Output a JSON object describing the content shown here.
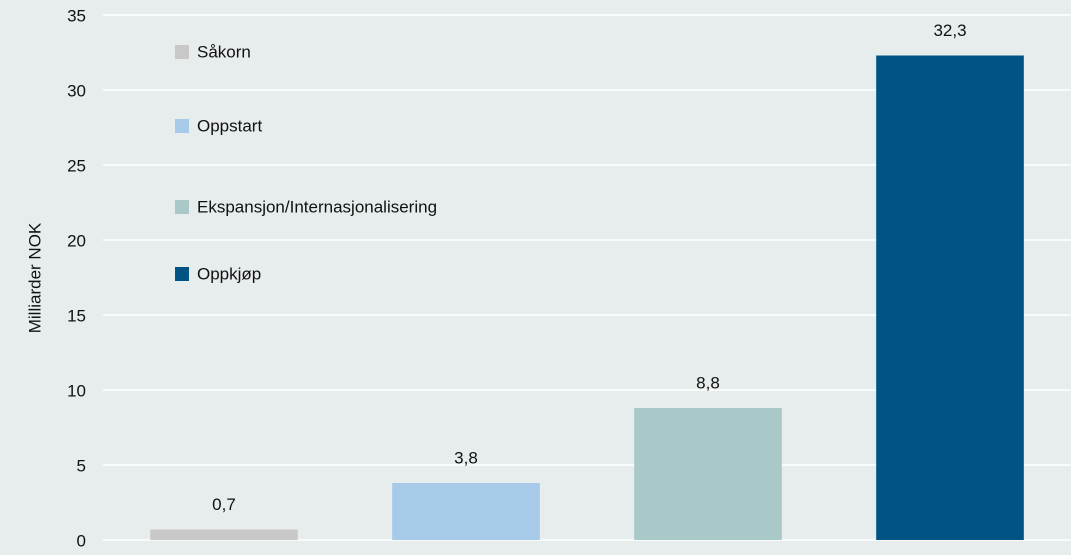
{
  "chart_data": {
    "type": "bar",
    "y_label": "Milliarder NOK",
    "categories": [
      "Såkorn",
      "Oppstart",
      "Ekspansjon/Internasjonalisering",
      "Oppkjøp"
    ],
    "values": [
      0.7,
      3.8,
      8.8,
      32.3
    ],
    "value_labels": [
      "0,7",
      "3,8",
      "8,8",
      "32,3"
    ],
    "colors": [
      "#c8c8c8",
      "#a7cae9",
      "#a9c8c8",
      "#005382"
    ],
    "ylim": [
      0,
      35
    ],
    "yticks": [
      0,
      5,
      10,
      15,
      20,
      25,
      30,
      35
    ],
    "grid": true,
    "legend": "top-left"
  }
}
